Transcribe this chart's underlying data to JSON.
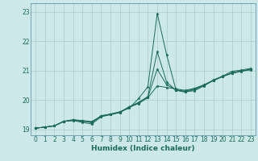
{
  "xlabel": "Humidex (Indice chaleur)",
  "background_color": "#cce8e8",
  "grid_color": "#aacccc",
  "line_color": "#1a6b5a",
  "spine_color": "#6699aa",
  "xlim": [
    -0.5,
    23.5
  ],
  "ylim": [
    18.8,
    23.3
  ],
  "yticks": [
    19,
    20,
    21,
    22,
    23
  ],
  "xticks": [
    0,
    1,
    2,
    3,
    4,
    5,
    6,
    7,
    8,
    9,
    10,
    11,
    12,
    13,
    14,
    15,
    16,
    17,
    18,
    19,
    20,
    21,
    22,
    23
  ],
  "series": [
    [
      19.04,
      19.08,
      19.12,
      19.28,
      19.33,
      19.3,
      19.22,
      19.47,
      19.52,
      19.6,
      19.72,
      20.05,
      20.45,
      22.95,
      21.55,
      20.35,
      20.28,
      20.32,
      20.48,
      20.68,
      20.82,
      20.98,
      21.02,
      21.08
    ],
    [
      19.04,
      19.08,
      19.12,
      19.27,
      19.31,
      19.3,
      19.27,
      19.45,
      19.52,
      19.59,
      19.77,
      19.92,
      20.12,
      21.65,
      20.62,
      20.33,
      20.27,
      20.36,
      20.5,
      20.66,
      20.8,
      20.93,
      20.99,
      21.05
    ],
    [
      19.04,
      19.08,
      19.12,
      19.27,
      19.3,
      19.24,
      19.18,
      19.43,
      19.5,
      19.57,
      19.75,
      19.88,
      20.08,
      20.48,
      20.43,
      20.38,
      20.33,
      20.4,
      20.52,
      20.68,
      20.8,
      20.91,
      20.98,
      21.03
    ],
    [
      19.04,
      19.08,
      19.12,
      19.27,
      19.31,
      19.27,
      19.25,
      19.44,
      19.51,
      19.58,
      19.76,
      19.9,
      20.1,
      21.05,
      20.52,
      20.35,
      20.3,
      20.38,
      20.51,
      20.67,
      20.81,
      20.92,
      20.99,
      21.04
    ]
  ],
  "figsize": [
    3.2,
    2.0
  ],
  "dpi": 100
}
